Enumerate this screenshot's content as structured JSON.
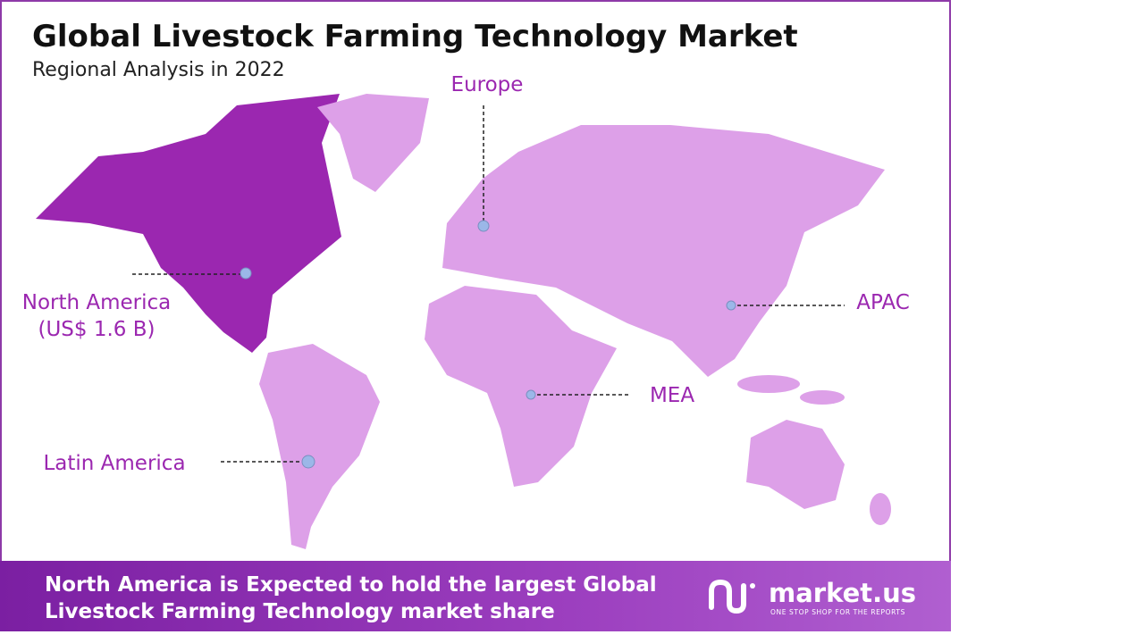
{
  "header": {
    "title": "Global Livestock Farming Technology Market",
    "subtitle": "Regional Analysis in 2022"
  },
  "regions": [
    {
      "name": "Europe"
    },
    {
      "name": "North America",
      "value_label": "(US$ 1.6 B)"
    },
    {
      "name": "APAC"
    },
    {
      "name": "MEA"
    },
    {
      "name": "Latin America"
    }
  ],
  "footer": {
    "text_lines": [
      "North America is Expected to hold the largest Global",
      "Livestock Farming Technology market share"
    ],
    "brand": "market.us",
    "tagline": "ONE STOP SHOP FOR THE REPORTS"
  }
}
